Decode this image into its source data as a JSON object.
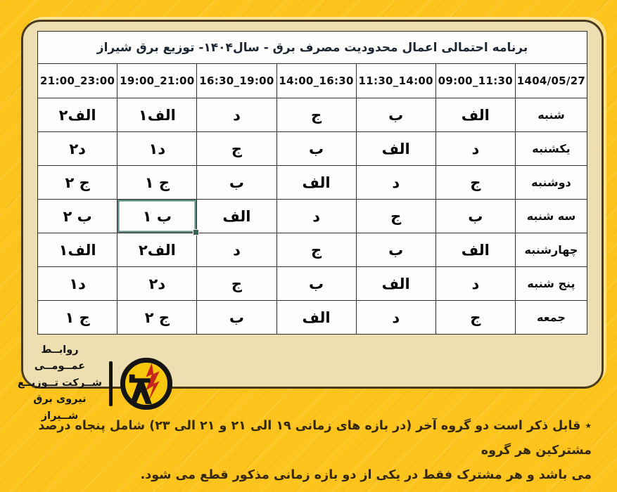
{
  "table": {
    "title": "برنامه احتمالی اعمال محدودیت مصرف برق  - سال۱۴۰۴- توزیع برق شیراز",
    "columns": [
      "1404/05/27",
      "09:00_11:30",
      "11:30_14:00",
      "14:00_16:30",
      "16:30_19:00",
      "19:00_21:00",
      "21:00_23:00"
    ],
    "rows": [
      {
        "day": "شنبه",
        "cells": [
          "الف",
          "ب",
          "ج",
          "د",
          "الف۱",
          "الف۲"
        ]
      },
      {
        "day": "یکشنبه",
        "cells": [
          "د",
          "الف",
          "ب",
          "ج",
          "د۱",
          "د۲"
        ]
      },
      {
        "day": "دوشنبه",
        "cells": [
          "ج",
          "د",
          "الف",
          "ب",
          "ج ۱",
          "ج ۲"
        ]
      },
      {
        "day": "سه شنبه",
        "cells": [
          "ب",
          "ج",
          "د",
          "الف",
          "ب ۱",
          "ب ۲"
        ]
      },
      {
        "day": "چهارشنبه",
        "cells": [
          "الف",
          "ب",
          "ج",
          "د",
          "الف۲",
          "الف۱"
        ]
      },
      {
        "day": "پنج شنبه",
        "cells": [
          "د",
          "الف",
          "ب",
          "ج",
          "د۲",
          "د۱"
        ]
      },
      {
        "day": "جمعه",
        "cells": [
          "ج",
          "د",
          "الف",
          "ب",
          "ج ۲",
          "ج ۱"
        ]
      }
    ],
    "selected_cell": {
      "row_index": 3,
      "cell_index": 4,
      "value": "ب ۱"
    }
  },
  "brand": {
    "line1": "روابــط عمــومــی",
    "line2": "شــرکت تــوزیــع",
    "line3": "نیروی برق شــیراز"
  },
  "footnote": {
    "line1": "٭ قابل ذکر است دو گروه آخر (در بازه های زمانی ۱۹ الی ۲۱ و ۲۱ الی ۲۳) شامل پنجاه درصد مشترکین هر گروه",
    "line2": "می باشد و هر مشترک فقط در یکی از دو بازه زمانی مذکور قطع می شود."
  },
  "colors": {
    "background": "#fcc41d",
    "card": "#eddfb2",
    "card_border": "#4c3a20",
    "logo_red": "#c5271c"
  }
}
